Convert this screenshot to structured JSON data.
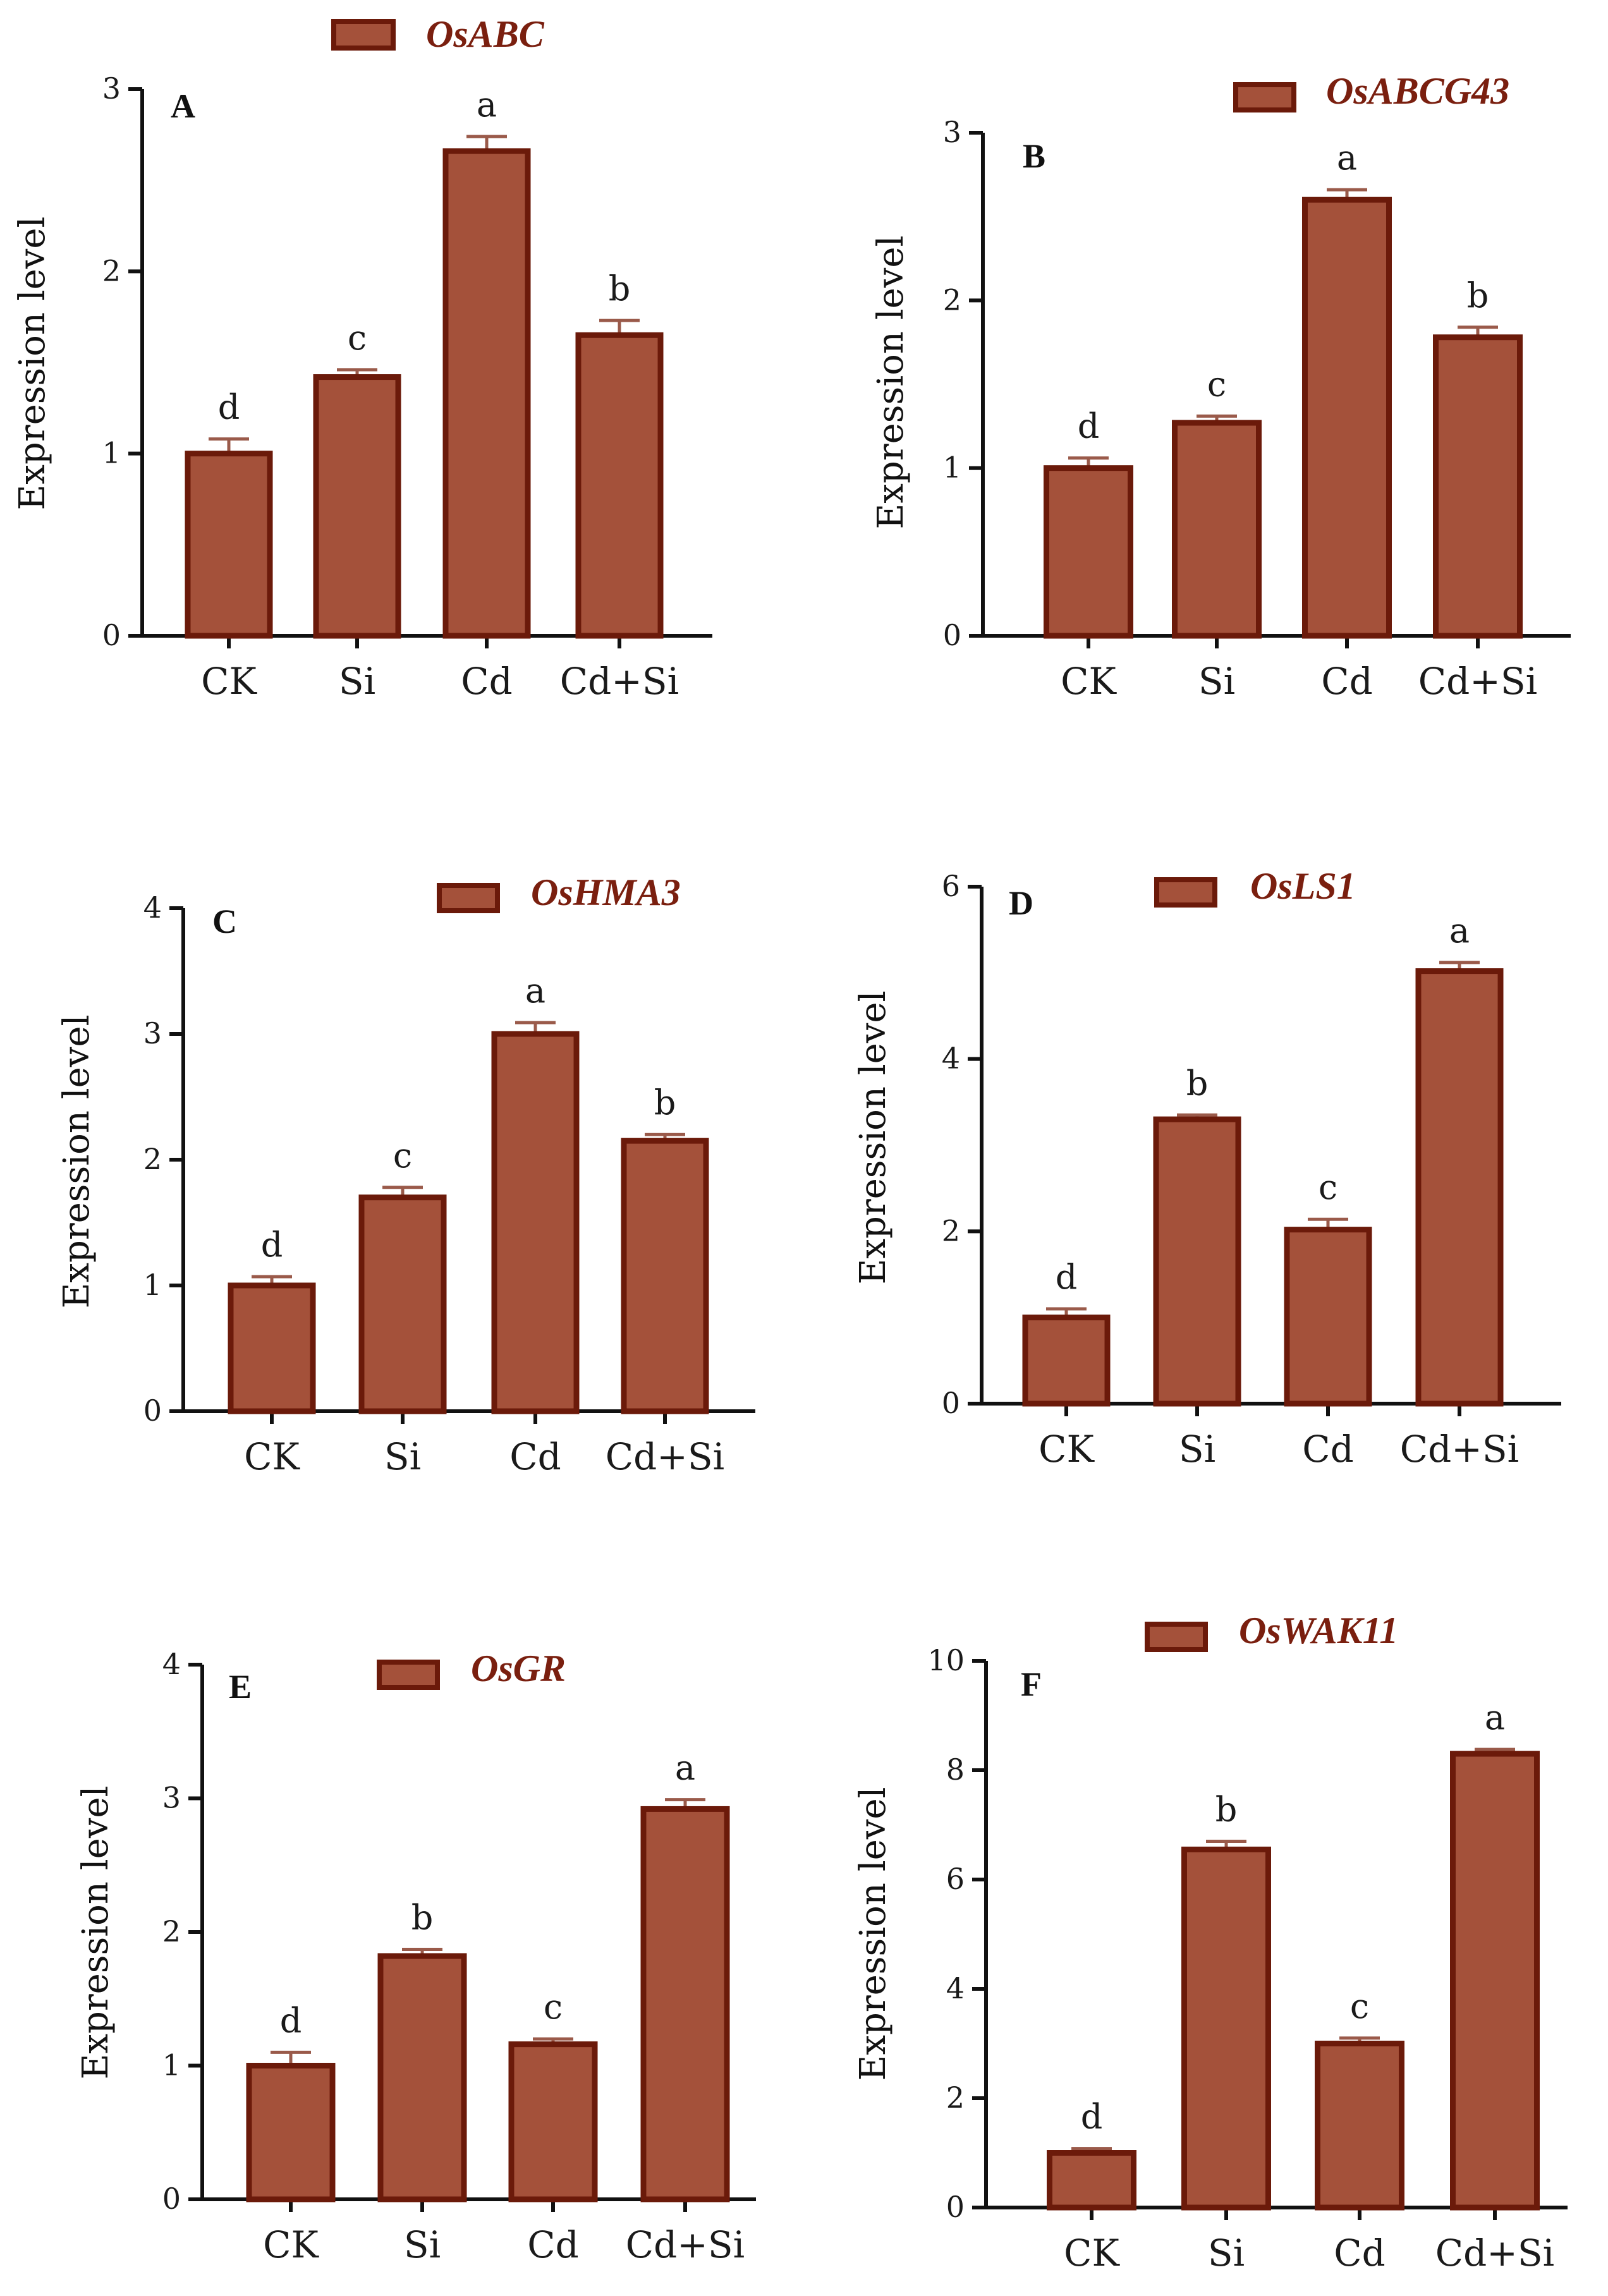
{
  "colors": {
    "bar_fill": "#a4513a",
    "bar_stroke": "#6b1a0a",
    "error_bar": "#9a5a4a",
    "legend_text": "#7a1f0f",
    "axis": "#111111"
  },
  "chart_data": [
    {
      "panel": "A",
      "type": "bar",
      "title": "OsABC",
      "ylabel": "Expression level",
      "xlabel": "",
      "categories": [
        "CK",
        "Si",
        "Cd",
        "Cd+Si"
      ],
      "values": [
        1.0,
        1.42,
        2.66,
        1.65
      ],
      "errors": [
        0.08,
        0.04,
        0.08,
        0.08
      ],
      "significance": [
        "d",
        "c",
        "a",
        "b"
      ],
      "ylim": [
        0,
        3
      ],
      "yticks": [
        "0",
        "1",
        "2",
        "3"
      ],
      "legend": [
        "OsABC"
      ]
    },
    {
      "panel": "B",
      "type": "bar",
      "title": "OsABCG43",
      "ylabel": "Expression level",
      "xlabel": "",
      "categories": [
        "CK",
        "Si",
        "Cd",
        "Cd+Si"
      ],
      "values": [
        1.0,
        1.27,
        2.6,
        1.78
      ],
      "errors": [
        0.06,
        0.04,
        0.06,
        0.06
      ],
      "significance": [
        "d",
        "c",
        "a",
        "b"
      ],
      "ylim": [
        0,
        3
      ],
      "yticks": [
        "0",
        "1",
        "2",
        "3"
      ],
      "legend": [
        "OsABCG43"
      ]
    },
    {
      "panel": "C",
      "type": "bar",
      "title": "OsHMA3",
      "ylabel": "Expression level",
      "xlabel": "",
      "categories": [
        "CK",
        "Si",
        "Cd",
        "Cd+Si"
      ],
      "values": [
        1.0,
        1.7,
        3.0,
        2.15
      ],
      "errors": [
        0.07,
        0.08,
        0.09,
        0.05
      ],
      "significance": [
        "d",
        "c",
        "a",
        "b"
      ],
      "ylim": [
        0,
        4
      ],
      "yticks": [
        "0",
        "1",
        "2",
        "3",
        "4"
      ],
      "legend": [
        "OsHMA3"
      ]
    },
    {
      "panel": "D",
      "type": "bar",
      "title": "OsLS1",
      "ylabel": "Expression level",
      "xlabel": "",
      "categories": [
        "CK",
        "Si",
        "Cd",
        "Cd+Si"
      ],
      "values": [
        1.0,
        3.3,
        2.02,
        5.02
      ],
      "errors": [
        0.1,
        0.05,
        0.12,
        0.1
      ],
      "significance": [
        "d",
        "b",
        "c",
        "a"
      ],
      "ylim": [
        0,
        6
      ],
      "yticks": [
        "0",
        "2",
        "4",
        "6"
      ],
      "legend": [
        "OsLS1"
      ]
    },
    {
      "panel": "E",
      "type": "bar",
      "title": "OsGR",
      "ylabel": "Expression level",
      "xlabel": "",
      "categories": [
        "CK",
        "Si",
        "Cd",
        "Cd+Si"
      ],
      "values": [
        1.0,
        1.82,
        1.16,
        2.92
      ],
      "errors": [
        0.1,
        0.05,
        0.04,
        0.07
      ],
      "significance": [
        "d",
        "b",
        "c",
        "a"
      ],
      "ylim": [
        0,
        4
      ],
      "yticks": [
        "0",
        "1",
        "2",
        "3",
        "4"
      ],
      "legend": [
        "OsGR"
      ]
    },
    {
      "panel": "F",
      "type": "bar",
      "title": "OsWAK11",
      "ylabel": "Expression level",
      "xlabel": "",
      "categories": [
        "CK",
        "Si",
        "Cd",
        "Cd+Si"
      ],
      "values": [
        1.0,
        6.55,
        3.0,
        8.3
      ],
      "errors": [
        0.08,
        0.15,
        0.1,
        0.08
      ],
      "significance": [
        "d",
        "b",
        "c",
        "a"
      ],
      "ylim": [
        0,
        10
      ],
      "yticks": [
        "0",
        "2",
        "4",
        "6",
        "8",
        "10"
      ],
      "legend": [
        "OsWAK11"
      ]
    }
  ]
}
